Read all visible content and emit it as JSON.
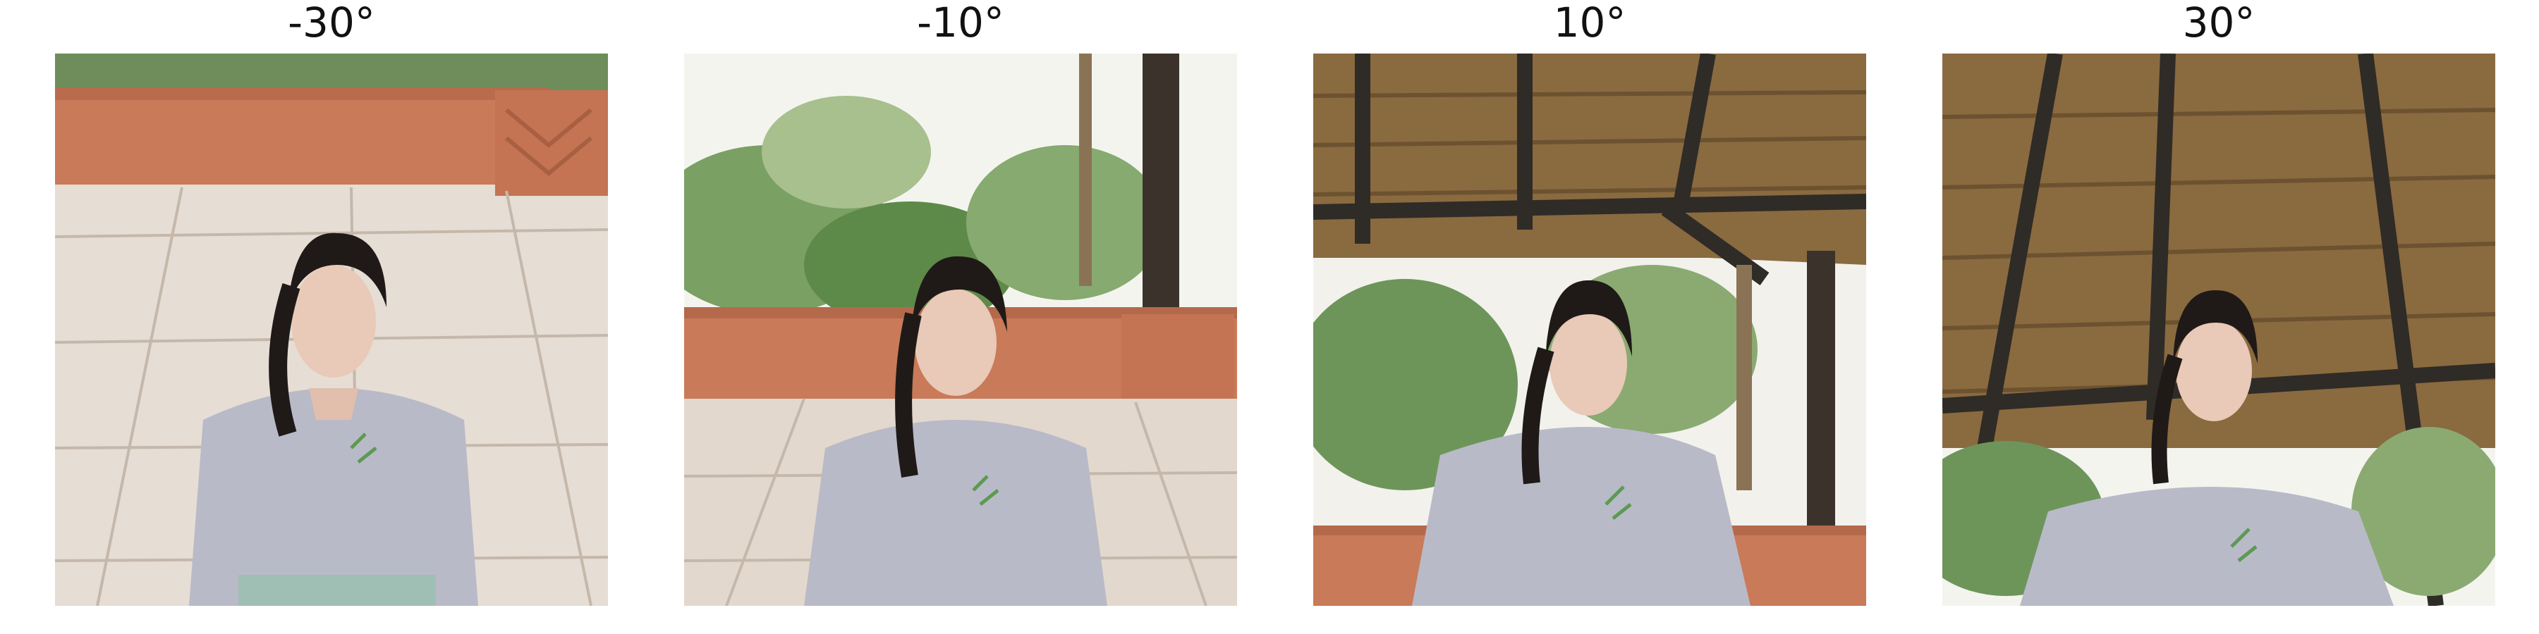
{
  "figure": {
    "panels": [
      {
        "title": "-30°",
        "scene": "patio-floor"
      },
      {
        "title": "-10°",
        "scene": "garden-wall"
      },
      {
        "title": "10°",
        "scene": "thatch-garden"
      },
      {
        "title": "30°",
        "scene": "thatch-roof"
      }
    ]
  },
  "colors": {
    "thatch": "#8a6a3f",
    "beam": "#2f2b27",
    "wall": "#c97a58",
    "tile": "#d9cfc5",
    "foliage": "#5e8a49",
    "sweater": "#b9bac8",
    "skin": "#e9c9b7",
    "hair": "#1f1a18"
  }
}
